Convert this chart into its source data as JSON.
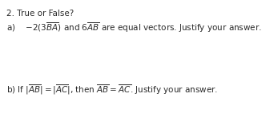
{
  "title": "2. True or False?",
  "line_a": "a)    $-2(3\\overline{BA})$ and $6\\overline{AB}$ are equal vectors. Justify your answer.",
  "line_b": "b) If $|\\overline{AB}| = |\\overline{AC}|$, then $\\overline{AB} = \\overline{AC}$. Justify your answer.",
  "background_color": "#ffffff",
  "text_color": "#2a2a2a",
  "title_fontsize": 7.5,
  "body_fontsize": 7.5
}
